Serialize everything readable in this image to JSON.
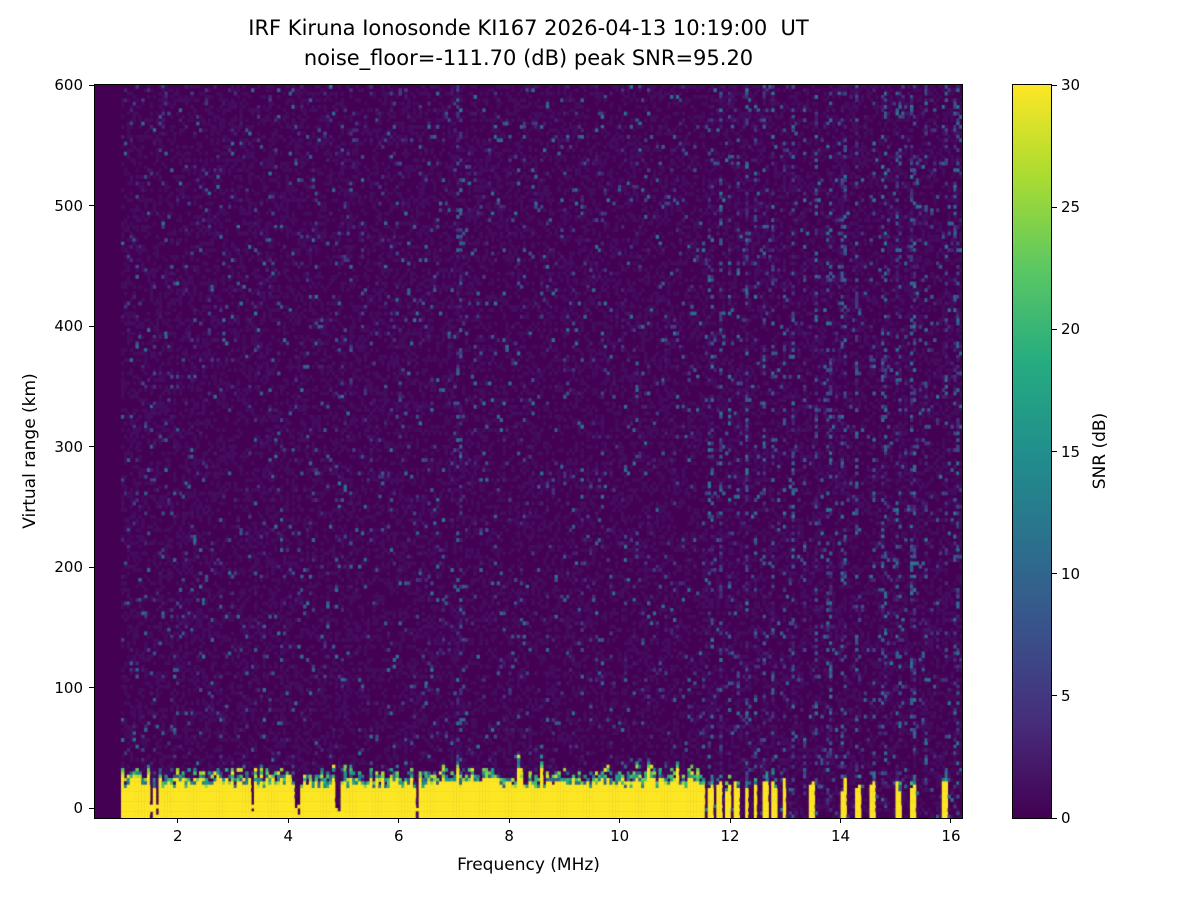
{
  "chart_data": {
    "type": "heatmap",
    "title": "IRF Kiruna Ionosonde KI167 2026-04-13 10:19:00  UT",
    "subtitle": "noise_floor=-111.70 (dB) peak SNR=95.20",
    "station": "IRF Kiruna Ionosonde KI167",
    "timestamp_ut": "2026-04-13 10:19:00",
    "noise_floor_db": -111.7,
    "peak_snr_db": 95.2,
    "xlabel": "Frequency (MHz)",
    "ylabel": "Virtual range (km)",
    "xlim": [
      0.5,
      16.2
    ],
    "ylim": [
      -8,
      600
    ],
    "x_ticks": [
      2,
      4,
      6,
      8,
      10,
      12,
      14,
      16
    ],
    "y_ticks": [
      0,
      100,
      200,
      300,
      400,
      500,
      600
    ],
    "grid": false,
    "legend": "none",
    "colorbar": {
      "label": "SNR (dB)",
      "min": 0,
      "max": 30,
      "ticks": [
        0,
        5,
        10,
        15,
        20,
        25,
        30
      ],
      "colormap": "viridis",
      "position": "right"
    },
    "heatmap": {
      "seed": 167,
      "freq_bins": 300,
      "range_bins": 220,
      "data_freq_start": 0.95,
      "background": {
        "speckle_probability": 0.055,
        "speckle_snr_max": 10
      },
      "ground_echo": {
        "description": "Saturated yellow echo band from ~-8 km up to ragged top ~22-36 km, continuous from 0.95 to 11.55 MHz with teal/green fringe and a few narrow dark notches",
        "freq_max": 11.55,
        "top_km_base": 22,
        "top_km_jitter": 10,
        "core_snr": 30,
        "notch_freqs": [
          1.52,
          1.62,
          3.36,
          4.16,
          4.9,
          6.33
        ],
        "notch_half_width": 0.035
      },
      "rfi_stripes": {
        "description": "Intermittent short yellow bars at the bottom above 11.6 MHz",
        "freqs": [
          11.66,
          11.82,
          11.98,
          12.14,
          12.3,
          12.46,
          12.62,
          12.78,
          12.98,
          13.5,
          14.05,
          14.3,
          14.6,
          15.05,
          15.3,
          15.9
        ],
        "half_width": 0.05,
        "top_km_base": 14,
        "top_km_jitter": 10
      },
      "noise_columns": {
        "description": "Full-height columns of enhanced blue/teal speckle (interference)",
        "freqs": [
          7.1,
          11.66,
          11.82,
          11.98,
          12.14,
          12.3,
          12.46,
          12.62,
          12.78,
          12.98,
          13.15,
          13.35,
          13.55,
          13.8,
          14.05,
          14.3,
          14.6,
          14.8,
          15.05,
          15.3,
          15.55,
          15.9,
          16.1
        ],
        "half_width": 0.04,
        "speckle_probability": 0.22,
        "speckle_snr_max": 11
      },
      "viridis_anchors": [
        [
          68,
          1,
          84
        ],
        [
          71,
          44,
          122
        ],
        [
          59,
          81,
          139
        ],
        [
          44,
          113,
          142
        ],
        [
          33,
          144,
          141
        ],
        [
          39,
          173,
          129
        ],
        [
          92,
          200,
          99
        ],
        [
          170,
          220,
          50
        ],
        [
          253,
          231,
          37
        ]
      ]
    }
  }
}
